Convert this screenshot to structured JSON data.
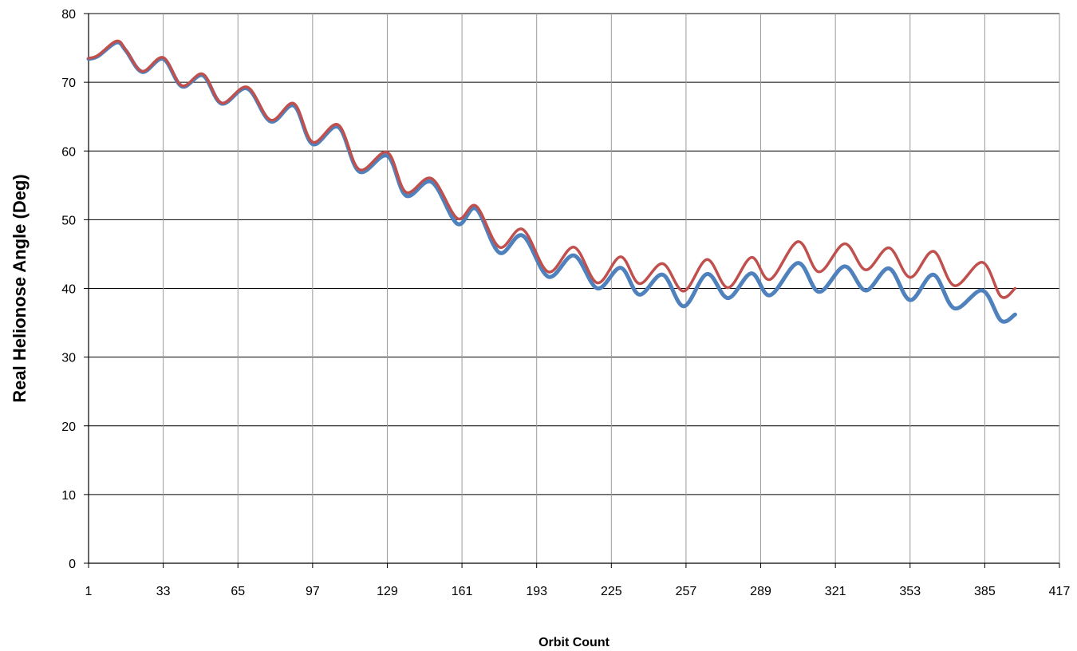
{
  "chart_data": {
    "type": "line",
    "xlabel": "Orbit Count",
    "ylabel": "Real Helionose Angle (Deg)",
    "xlim": [
      1,
      417
    ],
    "ylim": [
      0,
      80
    ],
    "x_ticks": [
      1,
      33,
      65,
      97,
      129,
      161,
      193,
      225,
      257,
      289,
      321,
      353,
      385,
      417
    ],
    "y_ticks": [
      0,
      10,
      20,
      30,
      40,
      50,
      60,
      70,
      80
    ],
    "grid": true,
    "legend": "none",
    "series": [
      {
        "color": "#4f81bd",
        "points": [
          [
            1,
            73.4
          ],
          [
            5,
            73.8
          ],
          [
            13,
            75.8
          ],
          [
            17,
            74.6
          ],
          [
            24,
            71.5
          ],
          [
            33,
            73.4
          ],
          [
            41,
            69.4
          ],
          [
            50,
            71.0
          ],
          [
            58,
            66.9
          ],
          [
            69,
            69.1
          ],
          [
            79,
            64.3
          ],
          [
            89,
            66.6
          ],
          [
            97,
            61.0
          ],
          [
            108,
            63.5
          ],
          [
            117,
            57.0
          ],
          [
            129,
            59.3
          ],
          [
            137,
            53.5
          ],
          [
            148,
            55.5
          ],
          [
            159,
            49.4
          ],
          [
            167,
            51.6
          ],
          [
            177,
            45.2
          ],
          [
            187,
            47.7
          ],
          [
            198,
            41.7
          ],
          [
            209,
            44.8
          ],
          [
            219,
            40.0
          ],
          [
            229,
            43.0
          ],
          [
            237,
            39.1
          ],
          [
            247,
            42.0
          ],
          [
            256,
            37.4
          ],
          [
            266,
            42.1
          ],
          [
            275,
            38.6
          ],
          [
            285,
            42.2
          ],
          [
            293,
            39.0
          ],
          [
            305,
            43.7
          ],
          [
            314,
            39.5
          ],
          [
            325,
            43.2
          ],
          [
            334,
            39.7
          ],
          [
            344,
            42.9
          ],
          [
            353,
            38.3
          ],
          [
            363,
            42.0
          ],
          [
            372,
            37.1
          ],
          [
            384,
            39.7
          ],
          [
            392,
            35.3
          ],
          [
            398,
            36.2
          ]
        ]
      },
      {
        "color": "#c0504d",
        "points": [
          [
            1,
            73.5
          ],
          [
            5,
            73.9
          ],
          [
            13,
            76.0
          ],
          [
            17,
            74.7
          ],
          [
            24,
            71.6
          ],
          [
            33,
            73.6
          ],
          [
            41,
            69.5
          ],
          [
            50,
            71.2
          ],
          [
            58,
            67.0
          ],
          [
            69,
            69.3
          ],
          [
            79,
            64.5
          ],
          [
            89,
            66.9
          ],
          [
            97,
            61.3
          ],
          [
            108,
            63.8
          ],
          [
            117,
            57.3
          ],
          [
            129,
            59.8
          ],
          [
            137,
            54.0
          ],
          [
            148,
            56.0
          ],
          [
            159,
            50.2
          ],
          [
            167,
            52.0
          ],
          [
            177,
            46.0
          ],
          [
            187,
            48.6
          ],
          [
            198,
            42.4
          ],
          [
            209,
            46.0
          ],
          [
            219,
            40.8
          ],
          [
            229,
            44.6
          ],
          [
            237,
            40.7
          ],
          [
            247,
            43.6
          ],
          [
            256,
            39.6
          ],
          [
            266,
            44.2
          ],
          [
            275,
            40.1
          ],
          [
            285,
            44.5
          ],
          [
            293,
            41.3
          ],
          [
            305,
            46.8
          ],
          [
            314,
            42.4
          ],
          [
            325,
            46.5
          ],
          [
            334,
            42.7
          ],
          [
            344,
            45.9
          ],
          [
            353,
            41.6
          ],
          [
            363,
            45.4
          ],
          [
            372,
            40.4
          ],
          [
            384,
            43.8
          ],
          [
            392,
            38.8
          ],
          [
            398,
            40.0
          ]
        ]
      }
    ]
  }
}
